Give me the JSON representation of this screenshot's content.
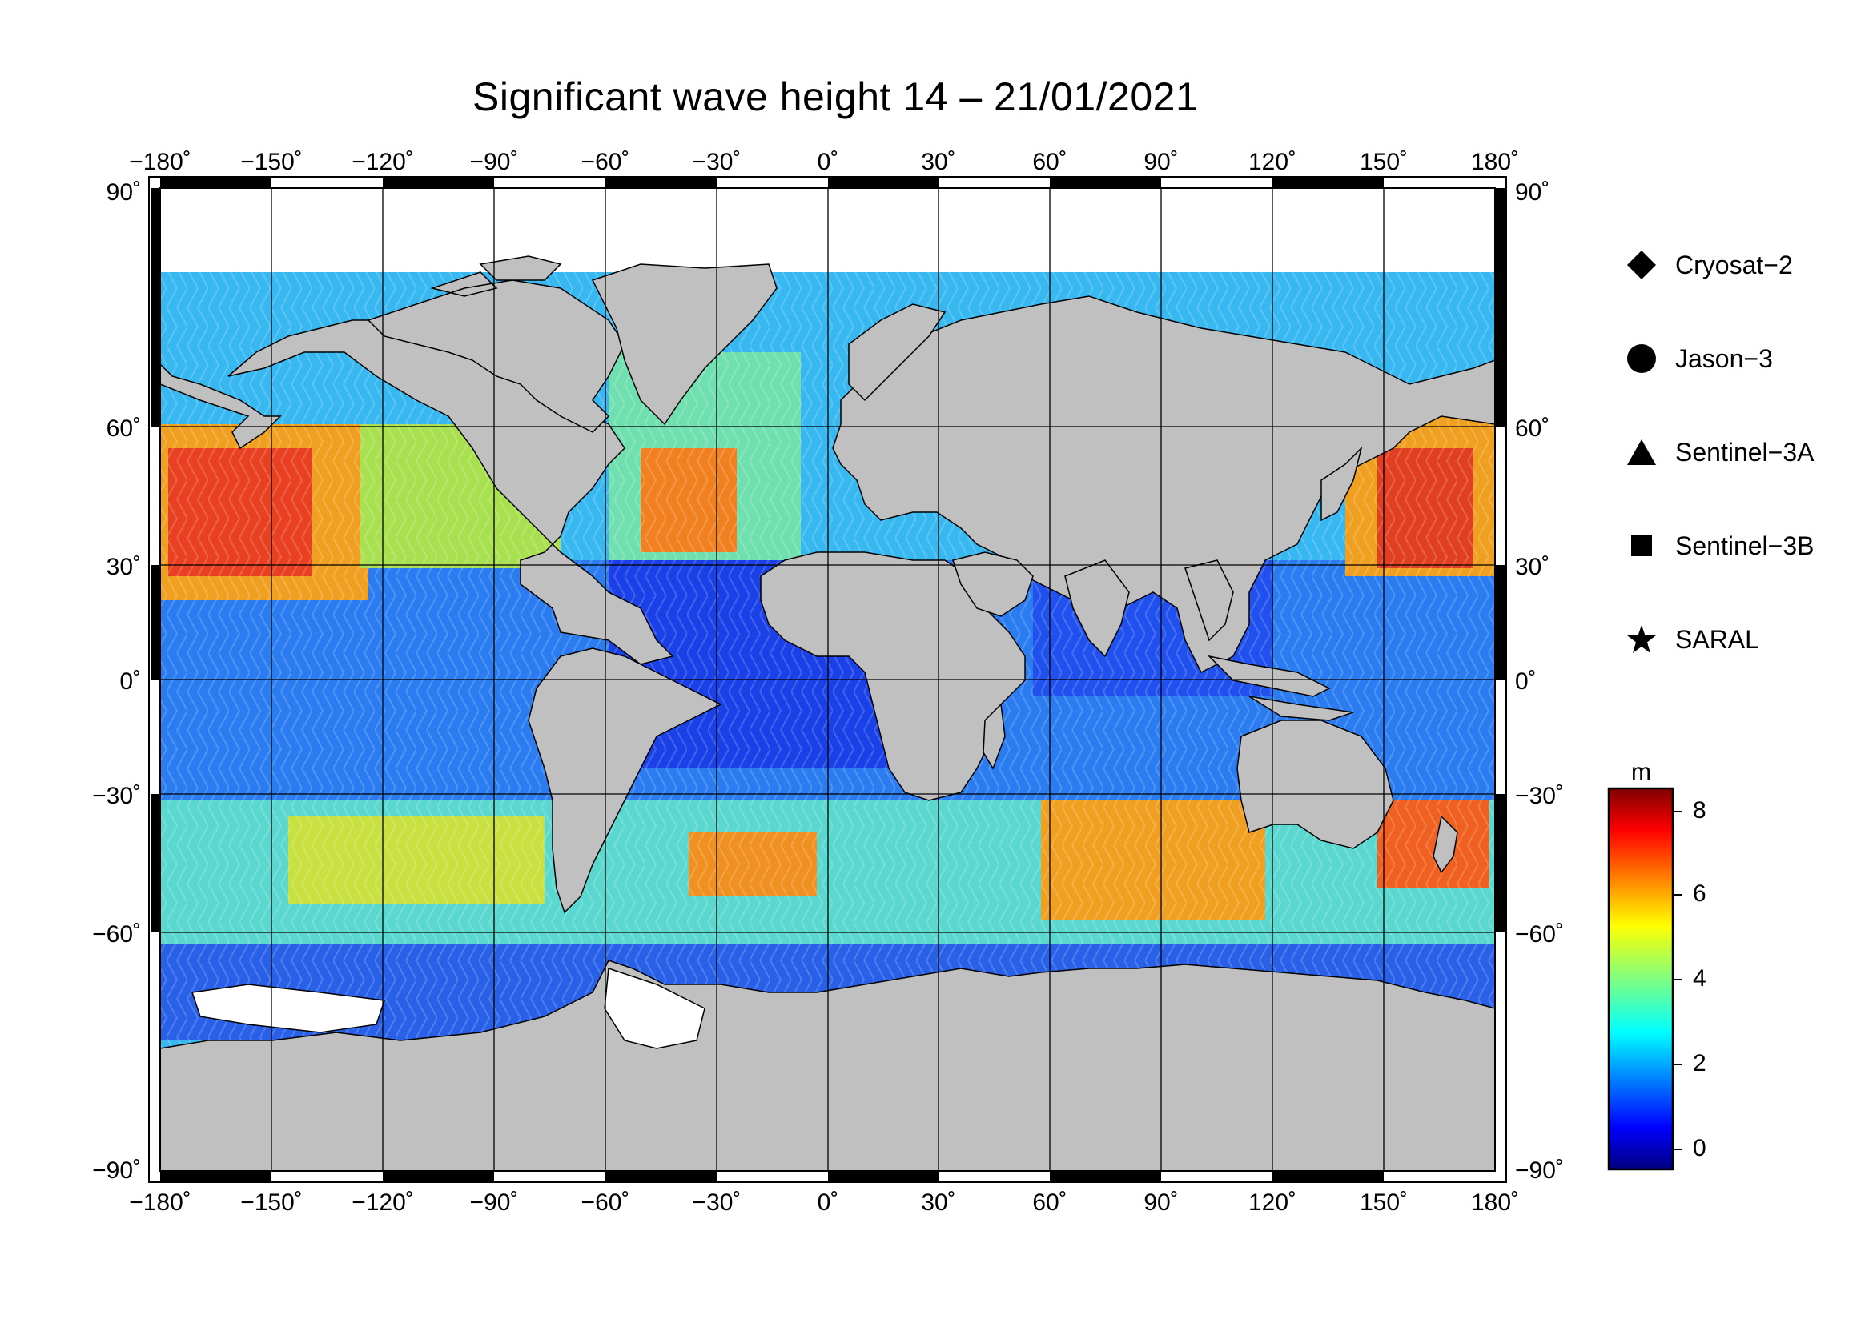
{
  "title": "Significant wave height 14 – 21/01/2021",
  "map": {
    "projection": "equirectangular",
    "lon_range": [
      -180,
      180
    ],
    "lat_range": [
      -90,
      90
    ],
    "lon_tick_labels": [
      "−180˚",
      "−150˚",
      "−120˚",
      "−90˚",
      "−60˚",
      "−30˚",
      "0˚",
      "30˚",
      "60˚",
      "90˚",
      "120˚",
      "150˚",
      "180˚"
    ],
    "lat_tick_labels": [
      "90˚",
      "60˚",
      "30˚",
      "0˚",
      "−30˚",
      "−60˚",
      "−90˚"
    ],
    "land_color": "#c0c0c0",
    "ice_color": "#ffffff"
  },
  "legend": {
    "items": [
      {
        "label": "Cryosat−2",
        "marker": "diamond"
      },
      {
        "label": "Jason−3",
        "marker": "circle"
      },
      {
        "label": "Sentinel−3A",
        "marker": "triangle"
      },
      {
        "label": "Sentinel−3B",
        "marker": "square"
      },
      {
        "label": "SARAL",
        "marker": "star"
      }
    ]
  },
  "colorbar": {
    "title": "m",
    "colormap": "jet",
    "min": -0.7,
    "max": 8.6,
    "tick_values": [
      8,
      6,
      4,
      2,
      0
    ],
    "tick_labels": [
      "8",
      "6",
      "4",
      "2",
      "0"
    ]
  }
}
